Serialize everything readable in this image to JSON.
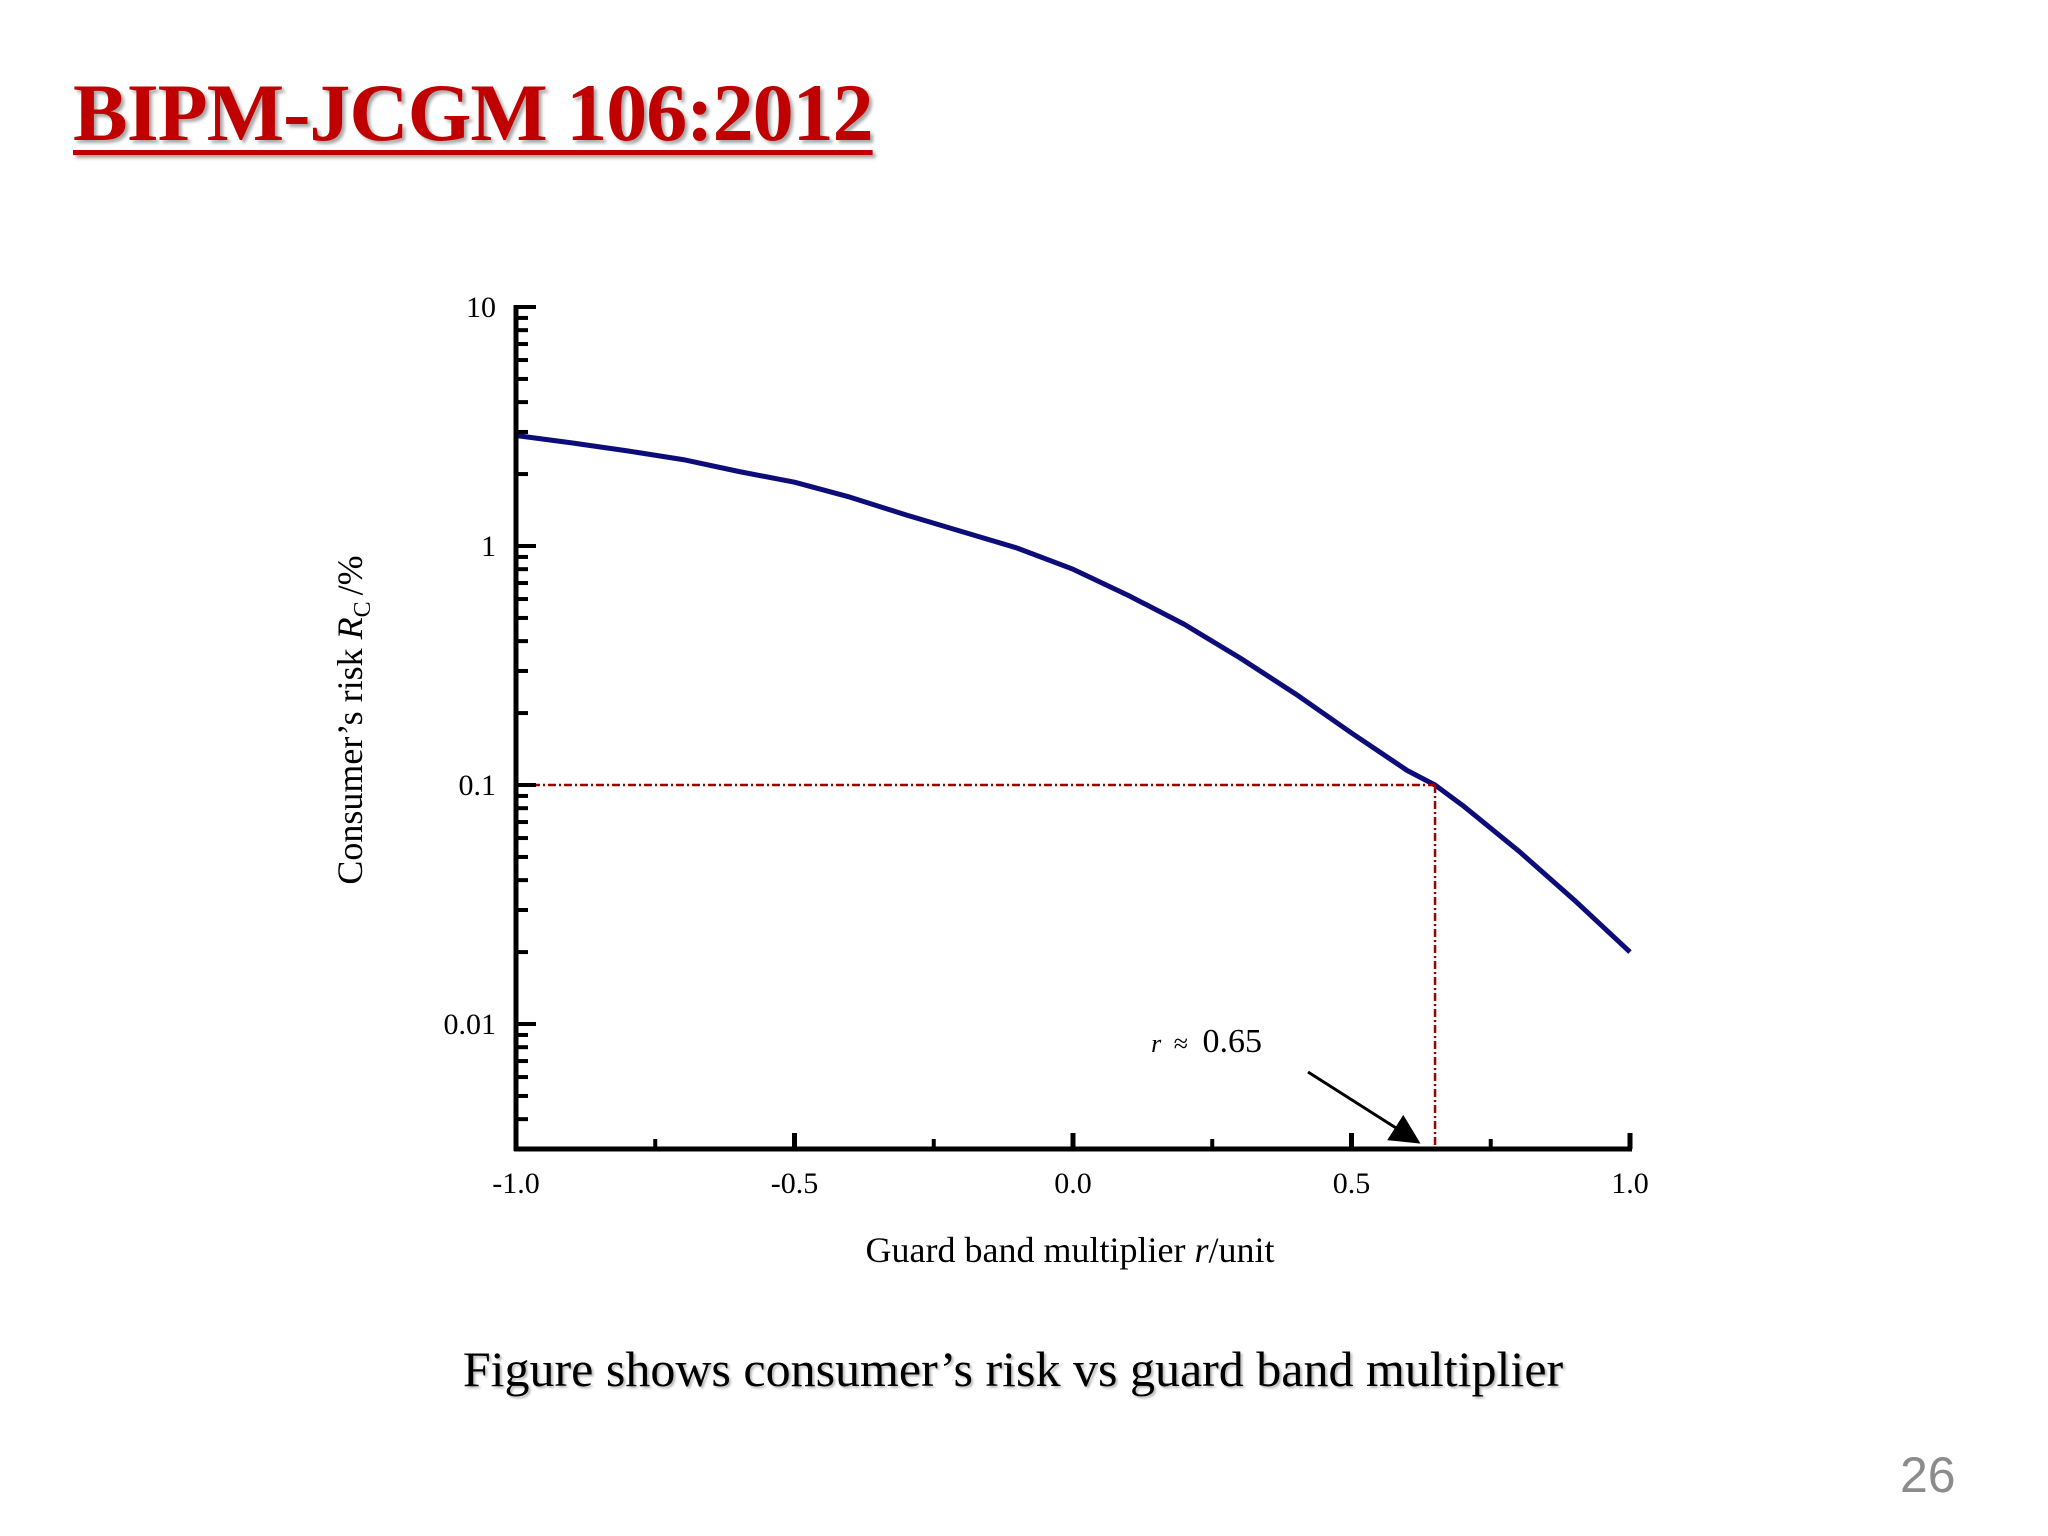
{
  "slide": {
    "title": "BIPM-JCGM 106:2012",
    "caption": "Figure shows consumer’s risk vs guard band multiplier",
    "page_number": "26"
  },
  "chart_data": {
    "type": "line",
    "xlabel_text": "Guard band multiplier ",
    "xlabel_var": "r",
    "xlabel_unit": "/unit",
    "ylabel_text": "Consumer’s risk ",
    "ylabel_var": "R",
    "ylabel_sub": "C",
    "ylabel_unit": "/%",
    "xlim": [
      -1.0,
      1.0
    ],
    "ylim": [
      0.003,
      10
    ],
    "yscale": "log",
    "x_ticks": [
      -1.0,
      -0.5,
      0.0,
      0.5,
      1.0
    ],
    "x_tick_labels": [
      "-1.0",
      "-0.5",
      "0.0",
      "0.5",
      "1.0"
    ],
    "y_ticks": [
      0.01,
      0.1,
      1,
      10
    ],
    "y_tick_labels": [
      "0.01",
      "0.1",
      "1",
      "10"
    ],
    "grid": false,
    "line_color": "#0d0d7a",
    "reference_color": "#a00000",
    "series": [
      {
        "x": [
          -1.0,
          -0.9,
          -0.8,
          -0.7,
          -0.6,
          -0.5,
          -0.4,
          -0.3,
          -0.2,
          -0.1,
          0.0,
          0.1,
          0.2,
          0.3,
          0.4,
          0.5,
          0.6,
          0.65,
          0.7,
          0.8,
          0.9,
          1.0
        ],
        "y": [
          2.9,
          2.7,
          2.5,
          2.3,
          2.05,
          1.85,
          1.6,
          1.35,
          1.15,
          0.98,
          0.8,
          0.62,
          0.47,
          0.34,
          0.24,
          0.165,
          0.115,
          0.1,
          0.082,
          0.053,
          0.033,
          0.02
        ]
      }
    ],
    "reference_point": {
      "x": 0.65,
      "y": 0.1
    },
    "annotation": {
      "var": "r",
      "approx": "≈",
      "value": "0.65"
    }
  }
}
